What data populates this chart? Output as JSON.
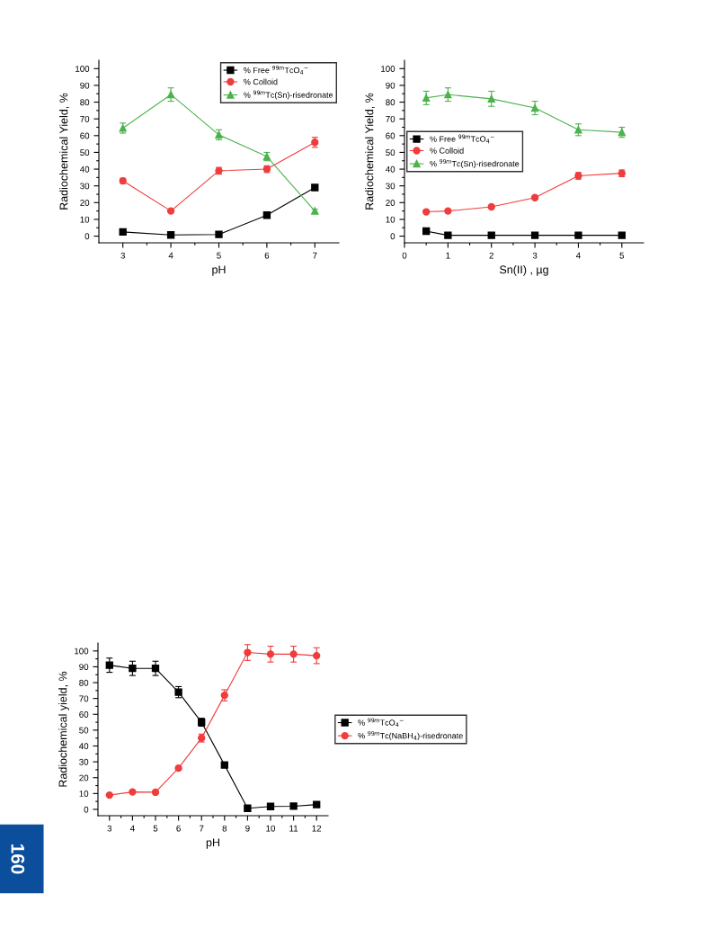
{
  "chart_data": [
    {
      "type": "line",
      "xlabel": "pH",
      "ylabel": "Radiochemical Yield, %",
      "x": [
        3,
        4,
        5,
        6,
        7
      ],
      "xlim": [
        2.5,
        7.5
      ],
      "ylim": [
        -4,
        105
      ],
      "xticks": [
        3,
        4,
        5,
        6,
        7,
        {
          "value": 3.5,
          "label": null
        },
        {
          "value": 4.5,
          "label": null
        },
        {
          "value": 5.5,
          "label": null
        },
        {
          "value": 6.5,
          "label": null
        }
      ],
      "yticks": [
        0,
        10,
        20,
        30,
        40,
        50,
        60,
        70,
        80,
        90,
        100,
        {
          "value": 5,
          "label": null
        },
        {
          "value": 15,
          "label": null
        },
        {
          "value": 25,
          "label": null
        },
        {
          "value": 35,
          "label": null
        },
        {
          "value": 45,
          "label": null
        },
        {
          "value": 55,
          "label": null
        },
        {
          "value": 65,
          "label": null
        },
        {
          "value": 75,
          "label": null
        },
        {
          "value": 85,
          "label": null
        },
        {
          "value": 95,
          "label": null
        }
      ],
      "legend": "top right",
      "grid": false,
      "series": [
        {
          "name": "% Free $^{99m}$TcO$_{4}$$^{−}$",
          "color": "#000000",
          "marker": "square",
          "values": [
            2.5,
            0.7,
            1,
            12.5,
            29
          ],
          "errors": [
            0.5,
            0.5,
            0.5,
            0.5,
            1
          ]
        },
        {
          "name": "% Colloid",
          "color": "#f03c3c",
          "marker": "circle",
          "values": [
            33,
            15,
            39,
            40,
            56
          ],
          "errors": [
            1.5,
            0.5,
            2,
            2,
            3
          ]
        },
        {
          "name": "% $^{99m}$Tc(Sn)-risedronate",
          "color": "#4cb24c",
          "marker": "triangle",
          "values": [
            64.5,
            84.5,
            60.5,
            47.5,
            15
          ],
          "errors": [
            3,
            4,
            3,
            2.5,
            1
          ]
        }
      ]
    },
    {
      "type": "line",
      "xlabel": "Sn(II) , µg",
      "ylabel": "Radiochemical Yield, %",
      "x": [
        0.5,
        1,
        2,
        3,
        4,
        5
      ],
      "xlim": [
        0,
        5.5
      ],
      "ylim": [
        -4,
        105
      ],
      "xticks": [
        0,
        1,
        2,
        3,
        4,
        5,
        {
          "value": 0.5,
          "label": null
        },
        {
          "value": 1.5,
          "label": null
        },
        {
          "value": 2.5,
          "label": null
        },
        {
          "value": 3.5,
          "label": null
        },
        {
          "value": 4.5,
          "label": null
        }
      ],
      "yticks": [
        0,
        10,
        20,
        30,
        40,
        50,
        60,
        70,
        80,
        90,
        100,
        {
          "value": 5,
          "label": null
        },
        {
          "value": 15,
          "label": null
        },
        {
          "value": 25,
          "label": null
        },
        {
          "value": 35,
          "label": null
        },
        {
          "value": 45,
          "label": null
        },
        {
          "value": 55,
          "label": null
        },
        {
          "value": 65,
          "label": null
        },
        {
          "value": 75,
          "label": null
        },
        {
          "value": 85,
          "label": null
        },
        {
          "value": 95,
          "label": null
        }
      ],
      "legend": "center left",
      "grid": false,
      "series": [
        {
          "name": "% Free $^{99m}$TcO$_{4}$$^{−}$",
          "color": "#000000",
          "marker": "square",
          "values": [
            3,
            0.5,
            0.5,
            0.5,
            0.5,
            0.5
          ]
        },
        {
          "name": "% Colloid",
          "color": "#f03c3c",
          "marker": "circle",
          "values": [
            14.5,
            15,
            17.5,
            23,
            36,
            37.5
          ],
          "errors": [
            0.5,
            0.5,
            0.5,
            1,
            2,
            2
          ]
        },
        {
          "name": "% $^{99m}$Tc(Sn)-risedronate",
          "color": "#4cb24c",
          "marker": "triangle",
          "values": [
            82.5,
            84.5,
            82,
            76.5,
            63.5,
            62
          ],
          "errors": [
            4,
            4,
            4.5,
            4,
            3.5,
            3
          ]
        }
      ]
    },
    {
      "type": "line",
      "xlabel": "pH",
      "ylabel": "Radiochemical yield, %",
      "x": [
        3,
        4,
        5,
        6,
        7,
        8,
        9,
        10,
        11,
        12
      ],
      "xlim": [
        2.5,
        12.5
      ],
      "ylim": [
        -4,
        105
      ],
      "xticks": [
        3,
        4,
        5,
        6,
        7,
        8,
        9,
        10,
        11,
        12,
        {
          "value": 3.5,
          "label": null
        },
        {
          "value": 4.5,
          "label": null
        },
        {
          "value": 5.5,
          "label": null
        },
        {
          "value": 6.5,
          "label": null
        },
        {
          "value": 7.5,
          "label": null
        },
        {
          "value": 8.5,
          "label": null
        },
        {
          "value": 9.5,
          "label": null
        },
        {
          "value": 10.5,
          "label": null
        },
        {
          "value": 11.5,
          "label": null
        }
      ],
      "yticks": [
        0,
        10,
        20,
        30,
        40,
        50,
        60,
        70,
        80,
        90,
        100,
        {
          "value": 5,
          "label": null
        },
        {
          "value": 15,
          "label": null
        },
        {
          "value": 25,
          "label": null
        },
        {
          "value": 35,
          "label": null
        },
        {
          "value": 45,
          "label": null
        },
        {
          "value": 55,
          "label": null
        },
        {
          "value": 65,
          "label": null
        },
        {
          "value": 75,
          "label": null
        },
        {
          "value": 85,
          "label": null
        },
        {
          "value": 95,
          "label": null
        }
      ],
      "legend": "right",
      "grid": false,
      "annotations": [
        "160"
      ],
      "series": [
        {
          "name": "% $^{99m}$TcO$_{4}$$^{−}$",
          "color": "#000000",
          "marker": "square",
          "values": [
            91,
            89,
            89,
            74,
            55,
            28,
            0.7,
            1.8,
            2,
            3
          ],
          "errors": [
            4.5,
            4.5,
            4.5,
            3.5,
            2.5,
            1,
            0.5,
            1,
            0.5,
            0.5
          ]
        },
        {
          "name": "% $^{99m}$Tc(NaBH$_{4}$)-risedronate",
          "color": "#f03c3c",
          "marker": "circle",
          "values": [
            9,
            11,
            10.8,
            26,
            45,
            72,
            99,
            98,
            98,
            97
          ],
          "errors": [
            0.5,
            0.5,
            0.5,
            1,
            2.5,
            3.5,
            5,
            5,
            5,
            5
          ]
        }
      ]
    }
  ]
}
